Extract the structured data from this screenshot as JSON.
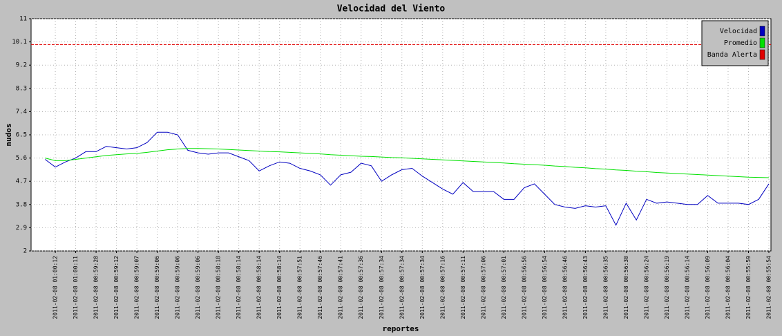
{
  "chart_data": {
    "type": "line",
    "title": "Velocidad del Viento",
    "xlabel": "reportes",
    "ylabel": "nudos",
    "categories": [
      null,
      "2011-02-08 01:00:12",
      null,
      "2011-02-08 01:00:11",
      null,
      "2011-02-08 00:59:28",
      null,
      "2011-02-08 00:59:12",
      null,
      "2011-02-08 00:59:07",
      null,
      "2011-02-08 00:59:06",
      null,
      "2011-02-08 00:59:06",
      null,
      "2011-02-08 00:59:06",
      null,
      "2011-02-08 00:58:18",
      null,
      "2011-02-08 00:58:14",
      null,
      "2011-02-08 00:58:14",
      null,
      "2011-02-08 00:58:14",
      null,
      "2011-02-08 00:57:51",
      null,
      "2011-02-08 00:57:46",
      null,
      "2011-02-08 00:57:41",
      null,
      "2011-02-08 00:57:36",
      null,
      "2011-02-08 00:57:34",
      null,
      "2011-02-08 00:57:34",
      null,
      "2011-02-08 00:57:34",
      null,
      "2011-02-08 00:57:16",
      null,
      "2011-02-08 00:57:11",
      null,
      "2011-02-08 00:57:06",
      null,
      "2011-02-08 00:57:01",
      null,
      "2011-02-08 00:56:56",
      null,
      "2011-02-08 00:56:54",
      null,
      "2011-02-08 00:56:46",
      null,
      "2011-02-08 00:56:43",
      null,
      "2011-02-08 00:56:35",
      null,
      "2011-02-08 00:56:30",
      null,
      "2011-02-08 00:56:24",
      null,
      "2011-02-08 00:56:19",
      null,
      "2011-02-08 00:56:14",
      null,
      "2011-02-08 00:56:09",
      null,
      "2011-02-08 00:56:04",
      null,
      "2011-02-08 00:55:59",
      null,
      "2011-02-08 00:55:54"
    ],
    "series": [
      {
        "name": "Velocidad",
        "color": "#0000c0",
        "values": [
          5.55,
          5.25,
          5.45,
          5.6,
          5.85,
          5.85,
          6.05,
          6.0,
          5.95,
          6.0,
          6.2,
          6.6,
          6.6,
          6.5,
          5.9,
          5.8,
          5.75,
          5.8,
          5.8,
          5.65,
          5.5,
          5.1,
          5.3,
          5.45,
          5.4,
          5.2,
          5.1,
          4.95,
          4.55,
          4.95,
          5.05,
          5.4,
          5.3,
          4.7,
          4.95,
          5.15,
          5.2,
          4.9,
          4.65,
          4.4,
          4.2,
          4.65,
          4.3,
          4.3,
          4.3,
          4.0,
          4.0,
          4.45,
          4.6,
          4.2,
          3.8,
          3.7,
          3.65,
          3.75,
          3.7,
          3.75,
          3.0,
          3.85,
          3.2,
          4.0,
          3.85,
          3.9,
          3.85,
          3.8,
          3.8,
          4.15,
          3.85,
          3.85,
          3.85,
          3.8,
          4.0,
          4.6
        ]
      },
      {
        "name": "Promedio",
        "color": "#00e000",
        "values": [
          5.6,
          5.5,
          5.5,
          5.55,
          5.6,
          5.65,
          5.7,
          5.73,
          5.76,
          5.78,
          5.82,
          5.87,
          5.92,
          5.95,
          5.97,
          5.97,
          5.96,
          5.95,
          5.93,
          5.91,
          5.89,
          5.87,
          5.85,
          5.84,
          5.82,
          5.8,
          5.78,
          5.76,
          5.73,
          5.71,
          5.69,
          5.67,
          5.66,
          5.64,
          5.62,
          5.61,
          5.59,
          5.57,
          5.55,
          5.53,
          5.51,
          5.49,
          5.47,
          5.45,
          5.43,
          5.41,
          5.38,
          5.36,
          5.34,
          5.32,
          5.29,
          5.27,
          5.24,
          5.22,
          5.19,
          5.17,
          5.14,
          5.12,
          5.09,
          5.07,
          5.04,
          5.02,
          5.0,
          4.98,
          4.96,
          4.94,
          4.92,
          4.9,
          4.88,
          4.86,
          4.85,
          4.84
        ]
      }
    ],
    "alert_band": {
      "name": "Banda Alerta",
      "color": "#e00000",
      "value": 10
    },
    "ylim": [
      2,
      11
    ],
    "yticks": [
      2,
      2.9,
      3.8,
      4.7,
      5.6,
      6.5,
      7.4,
      8.3,
      9.2,
      10.1,
      11
    ],
    "grid": true,
    "legend": "top-right"
  }
}
